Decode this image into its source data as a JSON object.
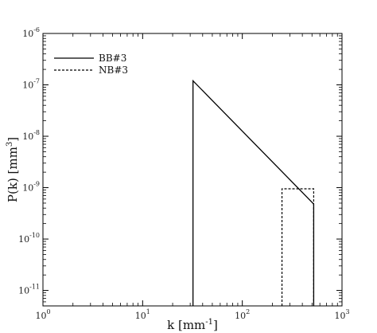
{
  "chart_data": {
    "type": "line",
    "x_scale": "log",
    "y_scale": "log",
    "xlim": [
      1,
      1000
    ],
    "ylim": [
      5e-12,
      1e-06
    ],
    "x_ticks": [
      {
        "value": 1,
        "label": "10",
        "exp": "0"
      },
      {
        "value": 10,
        "label": "10",
        "exp": "1"
      },
      {
        "value": 100,
        "label": "10",
        "exp": "2"
      },
      {
        "value": 1000,
        "label": "10",
        "exp": "3"
      }
    ],
    "y_ticks": [
      {
        "value": 1e-11,
        "label": "10",
        "exp": "-11"
      },
      {
        "value": 1e-10,
        "label": "10",
        "exp": "-10"
      },
      {
        "value": 1e-09,
        "label": "10",
        "exp": "-9"
      },
      {
        "value": 1e-08,
        "label": "10",
        "exp": "-8"
      },
      {
        "value": 1e-07,
        "label": "10",
        "exp": "-7"
      },
      {
        "value": 1e-06,
        "label": "10",
        "exp": "-6"
      }
    ],
    "xlabel": {
      "main": "k [mm",
      "sup": "-1",
      "end": "]"
    },
    "ylabel": {
      "main": "P(k) [mm",
      "sup": "3",
      "end": "]"
    },
    "grid": false,
    "legend_position": "top-left",
    "series": [
      {
        "name": "BB#3",
        "style": "solid",
        "color": "#000000",
        "points": [
          [
            32,
            5e-12
          ],
          [
            32,
            1.2e-07
          ],
          [
            520,
            4.8e-10
          ],
          [
            520,
            5e-12
          ]
        ]
      },
      {
        "name": "NB#3",
        "style": "dashed",
        "color": "#000000",
        "points": [
          [
            250,
            5e-12
          ],
          [
            250,
            9.5e-10
          ],
          [
            520,
            9.5e-10
          ],
          [
            520,
            5e-12
          ]
        ]
      }
    ]
  }
}
